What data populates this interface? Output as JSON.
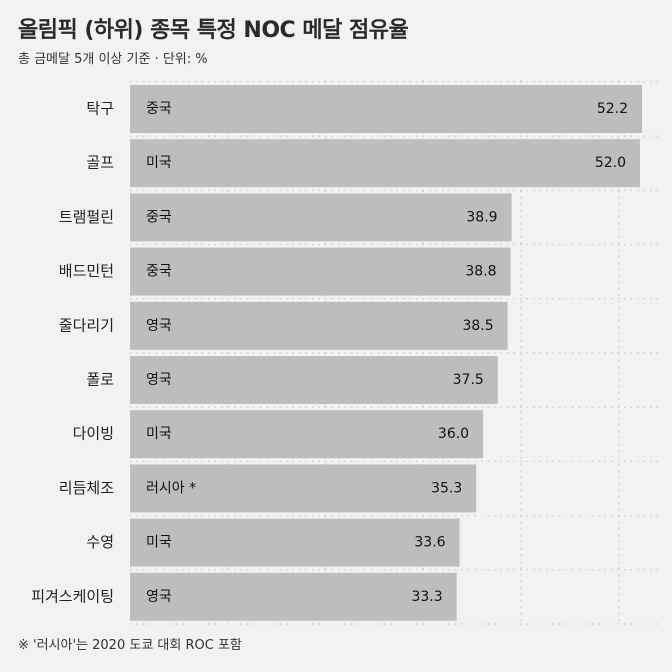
{
  "chart_data": {
    "type": "bar",
    "orientation": "horizontal",
    "title": "올림픽 (하위) 종목 특정 NOC 메달 점유율",
    "subtitle": "총 금메달 5개 이상 기준 · 단위: %",
    "footnote": "※ '러시아'는 2020 도쿄 대회 ROC 포함",
    "categories": [
      "탁구",
      "골프",
      "트램펄린",
      "배드민턴",
      "줄다리기",
      "폴로",
      "다이빙",
      "리듬체조",
      "수영",
      "피겨스케이팅"
    ],
    "noc_labels": [
      "중국",
      "미국",
      "중국",
      "중국",
      "영국",
      "영국",
      "미국",
      "러시아 *",
      "미국",
      "영국"
    ],
    "values": [
      52.2,
      52.0,
      38.9,
      38.8,
      38.5,
      37.5,
      36.0,
      35.3,
      33.6,
      33.3
    ],
    "value_labels": [
      "52.2",
      "52.0",
      "38.9",
      "38.8",
      "38.5",
      "37.5",
      "36.0",
      "35.3",
      "33.6",
      "33.3"
    ],
    "xlim": [
      0,
      52.2
    ],
    "grid": true,
    "colors": {
      "bar": "#bdbdbd",
      "background": "#f2f2f2",
      "grid": "#d0d0d0"
    }
  }
}
